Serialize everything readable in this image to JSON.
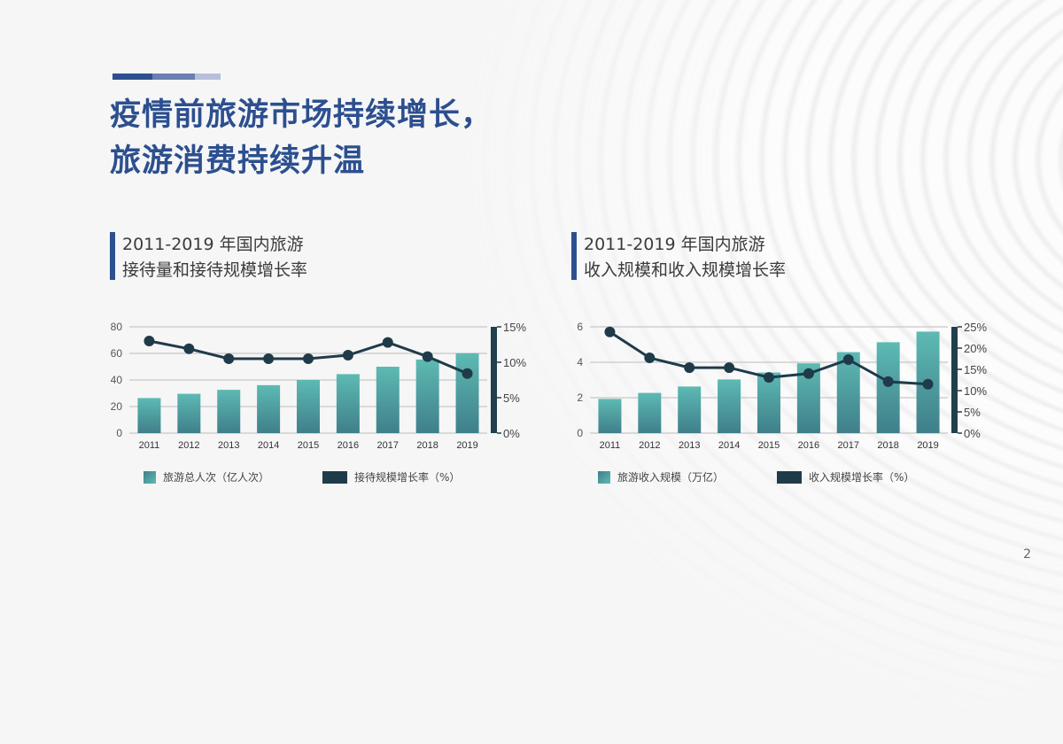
{
  "page": {
    "title_line1": "疫情前旅游市场持续增长，",
    "title_line2": "旅游消费持续升温",
    "page_number": "2",
    "colors": {
      "title": "#2c4f8f",
      "accent_bar": [
        "#2c4f8f",
        "#6b7fb0",
        "#b7bfdb"
      ],
      "sub_bar": "#2c4f8f",
      "bar_top": "#5dbab3",
      "bar_bottom": "#3f7f8a",
      "line": "#1f3b4a",
      "axis_right": "#213f4c",
      "grid": "#cfcfcf"
    }
  },
  "charts": [
    {
      "heading_line1": "2011-2019 年国内旅游",
      "heading_line2": "接待量和接待规模增长率",
      "legend_bar": "旅游总人次（亿人次）",
      "legend_line": "接待规模增长率（%）"
    },
    {
      "heading_line1": "2011-2019 年国内旅游",
      "heading_line2": "收入规模和收入规模增长率",
      "legend_bar": "旅游收入规模（万亿）",
      "legend_line": "收入规模增长率（%）"
    }
  ],
  "chart_data": [
    {
      "type": "bar+line",
      "title": "2011-2019 年国内旅游接待量和接待规模增长率",
      "categories": [
        "2011",
        "2012",
        "2013",
        "2014",
        "2015",
        "2016",
        "2017",
        "2018",
        "2019"
      ],
      "series": [
        {
          "name": "旅游总人次（亿人次）",
          "type": "bar",
          "axis": "left",
          "values": [
            26.4,
            29.6,
            32.6,
            36.1,
            40.0,
            44.4,
            50.0,
            55.4,
            60.1
          ]
        },
        {
          "name": "接待规模增长率（%）",
          "type": "line",
          "axis": "right",
          "values": [
            13.0,
            11.9,
            10.5,
            10.5,
            10.5,
            11.0,
            12.8,
            10.8,
            8.4
          ]
        }
      ],
      "left_axis": {
        "ylim": [
          0,
          80
        ],
        "ticks": [
          "0",
          "20",
          "40",
          "60",
          "80"
        ]
      },
      "right_axis": {
        "ylim": [
          0,
          15
        ],
        "ticks": [
          "0%",
          "5%",
          "10%",
          "15%"
        ]
      },
      "grid": true,
      "legend_position": "bottom"
    },
    {
      "type": "bar+line",
      "title": "2011-2019 年国内旅游收入规模和收入规模增长率",
      "categories": [
        "2011",
        "2012",
        "2013",
        "2014",
        "2015",
        "2016",
        "2017",
        "2018",
        "2019"
      ],
      "series": [
        {
          "name": "旅游收入规模（万亿）",
          "type": "bar",
          "axis": "left",
          "values": [
            1.93,
            2.27,
            2.63,
            3.03,
            3.42,
            3.94,
            4.57,
            5.13,
            5.73
          ]
        },
        {
          "name": "收入规模增长率（%）",
          "type": "line",
          "axis": "right",
          "values": [
            23.8,
            17.7,
            15.4,
            15.4,
            13.1,
            14.0,
            17.3,
            12.1,
            11.5
          ]
        }
      ],
      "left_axis": {
        "ylim": [
          0,
          6
        ],
        "ticks": [
          "0",
          "2",
          "4",
          "6"
        ]
      },
      "right_axis": {
        "ylim": [
          0,
          25
        ],
        "ticks": [
          "0%",
          "5%",
          "10%",
          "15%",
          "20%",
          "25%"
        ]
      },
      "grid": true,
      "legend_position": "bottom"
    }
  ]
}
